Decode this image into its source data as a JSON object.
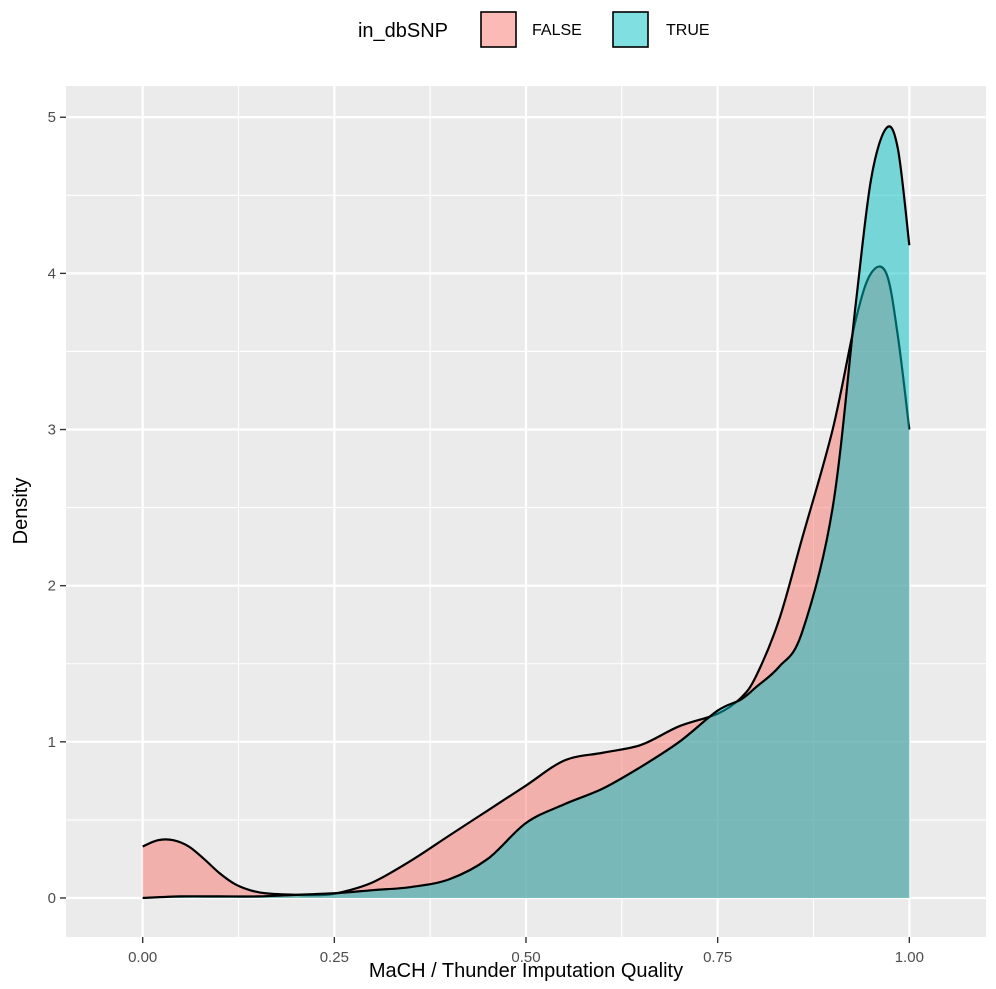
{
  "chart_data": {
    "type": "area",
    "title": "",
    "xlabel": "MaCH / Thunder Imputation Quality",
    "ylabel": "Density",
    "xlim": [
      -0.1,
      1.1
    ],
    "ylim": [
      -0.25,
      5.2
    ],
    "x_ticks": [
      0,
      0.25,
      0.5,
      0.75,
      1
    ],
    "x_tick_labels": [
      "0.00",
      "0.25",
      "0.50",
      "0.75",
      "1.00"
    ],
    "y_ticks": [
      0,
      1,
      2,
      3,
      4,
      5
    ],
    "y_tick_labels": [
      "0",
      "1",
      "2",
      "3",
      "4",
      "5"
    ],
    "grid": true,
    "legend": {
      "title": "in_dbSNP",
      "position": "top",
      "entries": [
        "FALSE",
        "TRUE"
      ]
    },
    "series": [
      {
        "name": "FALSE",
        "color": "#F8766D",
        "x": [
          0.0,
          0.02,
          0.04,
          0.06,
          0.08,
          0.1,
          0.12,
          0.14,
          0.16,
          0.2,
          0.24,
          0.27,
          0.3,
          0.33,
          0.36,
          0.4,
          0.45,
          0.5,
          0.55,
          0.6,
          0.65,
          0.7,
          0.75,
          0.78,
          0.8,
          0.83,
          0.86,
          0.9,
          0.93,
          0.95,
          0.97,
          0.985,
          1.0
        ],
        "y": [
          0.33,
          0.37,
          0.37,
          0.33,
          0.25,
          0.16,
          0.09,
          0.05,
          0.03,
          0.02,
          0.02,
          0.05,
          0.1,
          0.18,
          0.27,
          0.4,
          0.56,
          0.72,
          0.88,
          0.93,
          0.98,
          1.1,
          1.18,
          1.28,
          1.42,
          1.78,
          2.3,
          3.0,
          3.7,
          4.0,
          4.0,
          3.6,
          3.0
        ]
      },
      {
        "name": "TRUE",
        "color": "#00BFC4",
        "x": [
          0.0,
          0.05,
          0.1,
          0.15,
          0.2,
          0.25,
          0.3,
          0.35,
          0.4,
          0.45,
          0.5,
          0.55,
          0.6,
          0.65,
          0.7,
          0.75,
          0.78,
          0.8,
          0.83,
          0.86,
          0.9,
          0.93,
          0.95,
          0.97,
          0.985,
          1.0
        ],
        "y": [
          0.0,
          0.01,
          0.01,
          0.01,
          0.02,
          0.03,
          0.05,
          0.07,
          0.12,
          0.25,
          0.48,
          0.6,
          0.7,
          0.84,
          1.0,
          1.2,
          1.27,
          1.35,
          1.48,
          1.7,
          2.5,
          3.8,
          4.6,
          4.93,
          4.8,
          4.18
        ]
      }
    ]
  }
}
